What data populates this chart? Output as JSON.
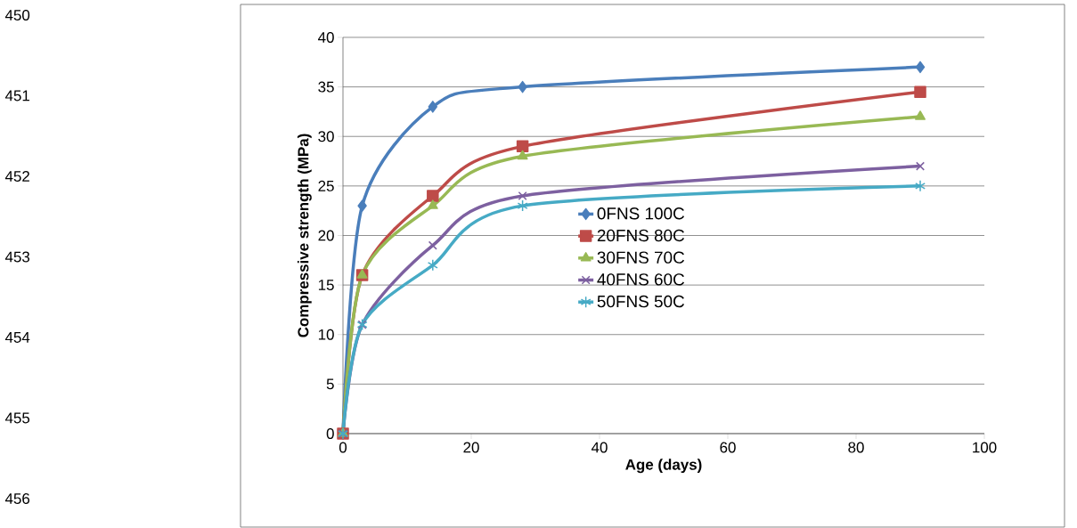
{
  "chart_data": {
    "type": "line",
    "xlabel": "Age (days)",
    "ylabel": "Compressive strength (MPa)",
    "x": [
      0,
      3,
      14,
      28,
      90
    ],
    "series": [
      {
        "name": "0FNS 100C",
        "color": "#4a7ebb",
        "marker": "diamond",
        "values": [
          0,
          23,
          33,
          35,
          37
        ]
      },
      {
        "name": "20FNS 80C",
        "color": "#be4b48",
        "marker": "square",
        "values": [
          0,
          16,
          24,
          29,
          34.5
        ]
      },
      {
        "name": "30FNS 70C",
        "color": "#98b954",
        "marker": "triangle",
        "values": [
          0,
          16,
          23,
          28,
          32
        ]
      },
      {
        "name": "40FNS 60C",
        "color": "#7d60a0",
        "marker": "cross",
        "values": [
          0,
          11,
          19,
          24,
          27
        ]
      },
      {
        "name": "50FNS 50C",
        "color": "#46aac5",
        "marker": "cross",
        "values": [
          0,
          11,
          17,
          23,
          25
        ]
      }
    ],
    "xlim": [
      0,
      100
    ],
    "xticks": [
      0,
      20,
      40,
      60,
      80,
      100
    ],
    "ylim": [
      0,
      40
    ],
    "yticks": [
      0,
      5,
      10,
      15,
      20,
      25,
      30,
      35,
      40
    ],
    "grid": "y",
    "legend": "center",
    "line_style": "solid",
    "annotations": [
      "450",
      "451",
      "452",
      "453",
      "454",
      "455",
      "456"
    ]
  }
}
